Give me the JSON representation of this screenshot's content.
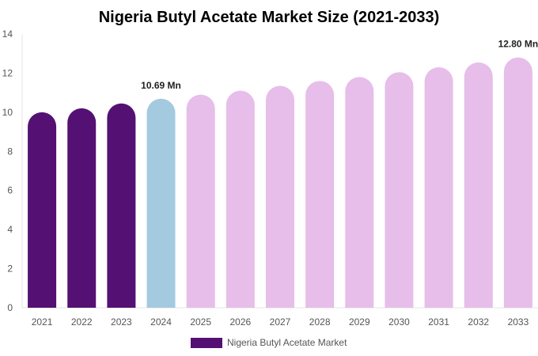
{
  "chart_data": {
    "type": "bar",
    "title": "Nigeria Butyl Acetate Market Size (2021-2033)",
    "xlabel": "",
    "ylabel": "",
    "categories": [
      "2021",
      "2022",
      "2023",
      "2024",
      "2025",
      "2026",
      "2027",
      "2028",
      "2029",
      "2030",
      "2031",
      "2032",
      "2033"
    ],
    "series": [
      {
        "name": "Nigeria Butyl Acetate Market",
        "values": [
          10.0,
          10.2,
          10.45,
          10.69,
          10.9,
          11.1,
          11.35,
          11.6,
          11.8,
          12.05,
          12.3,
          12.55,
          12.8
        ]
      }
    ],
    "bar_colors": [
      "#541173",
      "#541173",
      "#541173",
      "#A4CADF",
      "#E6BEE9",
      "#E6BEE9",
      "#E6BEE9",
      "#E6BEE9",
      "#E6BEE9",
      "#E6BEE9",
      "#E6BEE9",
      "#E6BEE9",
      "#E6BEE9"
    ],
    "data_labels": [
      {
        "index": 3,
        "text": "10.69 Mn"
      },
      {
        "index": 12,
        "text": "12.80 Mn"
      }
    ],
    "ylim": [
      0,
      14
    ],
    "yticks": [
      0,
      2,
      4,
      6,
      8,
      10,
      12,
      14
    ],
    "grid": false,
    "legend": {
      "position": "bottom",
      "label": "Nigeria Butyl Acetate Market",
      "color": "#541173"
    }
  }
}
